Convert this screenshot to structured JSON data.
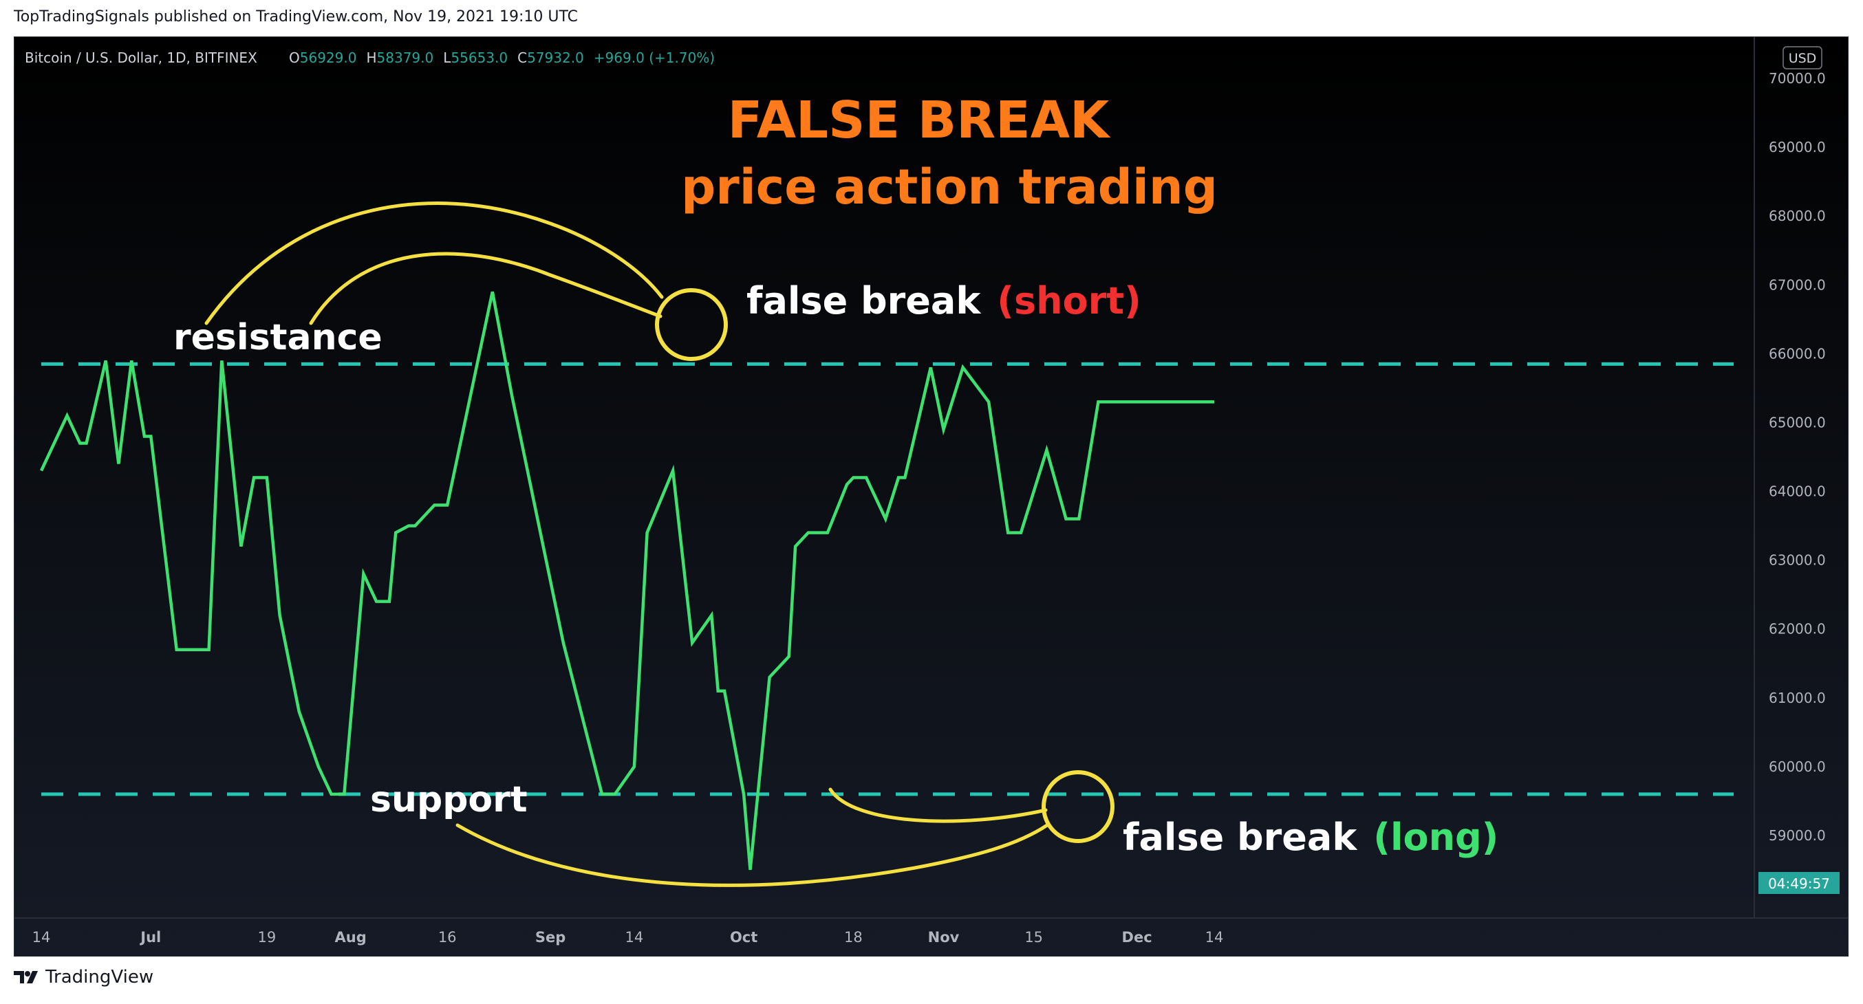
{
  "publisher_line": "TopTradingSignals published on TradingView.com, Nov 19, 2021 19:10 UTC",
  "footer": {
    "brand": "TradingView",
    "logo_icon": "tradingview-logo-icon"
  },
  "legend": {
    "symbol": "Bitcoin / U.S. Dollar, 1D, BITFINEX",
    "open_label": "O",
    "open": "56929.0",
    "high_label": "H",
    "high": "58379.0",
    "low_label": "L",
    "low": "55653.0",
    "close_label": "C",
    "close": "57932.0",
    "change": "+969.0 (+1.70%)"
  },
  "currency_badge": "USD",
  "countdown": "04:49:57",
  "annotations": {
    "title_line1": "FALSE BREAK",
    "title_line2": "price action trading",
    "resistance": "resistance",
    "support": "support",
    "false_break_short": "false break",
    "short_tag": "(short)",
    "false_break_long": "false break",
    "long_tag": "(long)"
  },
  "colors": {
    "line": "#3ee070",
    "levels": "#26c6b4",
    "title": "#ff7b1a",
    "short": "#f23030",
    "long": "#3ee070",
    "highlight": "#f5e042",
    "background": "#0b0e14"
  },
  "chart_data": {
    "type": "line",
    "x": [
      "Jun 14",
      "Jun 18",
      "Jun 20",
      "Jun 21",
      "Jun 24",
      "Jun 26",
      "Jun 28",
      "Jun 30",
      "Jul 1",
      "Jul 5",
      "Jul 8",
      "Jul 10",
      "Jul 12",
      "Jul 15",
      "Jul 17",
      "Jul 19",
      "Jul 21",
      "Jul 24",
      "Jul 27",
      "Jul 29",
      "Jul 31",
      "Aug 3",
      "Aug 5",
      "Aug 7",
      "Aug 8",
      "Aug 10",
      "Aug 11",
      "Aug 13",
      "Aug 14",
      "Aug 16",
      "Aug 23",
      "Aug 26",
      "Aug 30",
      "Sep 3",
      "Sep 9",
      "Sep 11",
      "Sep 14",
      "Sep 16",
      "Sep 20",
      "Sep 23",
      "Sep 26",
      "Sep 27",
      "Sep 28",
      "Oct 1",
      "Oct 2",
      "Oct 5",
      "Oct 8",
      "Oct 9",
      "Oct 11",
      "Oct 14",
      "Oct 17",
      "Oct 18",
      "Oct 20",
      "Oct 23",
      "Oct 25",
      "Oct 26",
      "Oct 30",
      "Nov 1",
      "Nov 4",
      "Nov 8",
      "Nov 11",
      "Nov 13",
      "Nov 17",
      "Nov 20",
      "Nov 22",
      "Nov 25",
      "Nov 30",
      "Dec 5",
      "Dec 13"
    ],
    "values": [
      64300,
      65100,
      64700,
      64700,
      65900,
      64400,
      65900,
      64800,
      64800,
      61700,
      61700,
      61700,
      65900,
      63200,
      64200,
      64200,
      62200,
      60800,
      60000,
      59600,
      59600,
      62800,
      62400,
      62400,
      63400,
      63500,
      63500,
      63700,
      63800,
      63800,
      66900,
      65400,
      63600,
      61800,
      59600,
      59600,
      60000,
      63400,
      64300,
      61800,
      62200,
      61100,
      61100,
      59600,
      58500,
      61300,
      61600,
      63200,
      63400,
      63400,
      64100,
      64200,
      64200,
      63600,
      64200,
      64200,
      65800,
      64900,
      65800,
      65300,
      63400,
      63400,
      64600,
      63600,
      63600,
      65300,
      65300,
      65300,
      65300
    ],
    "xlabel": "",
    "ylabel": "",
    "ylim": [
      57800,
      70600
    ],
    "y_ticks": [
      "70000.0",
      "69000.0",
      "68000.0",
      "67000.0",
      "66000.0",
      "65000.0",
      "64000.0",
      "63000.0",
      "62000.0",
      "61000.0",
      "60000.0",
      "59000.0"
    ],
    "x_ticks": [
      "14",
      "Jul",
      "19",
      "Aug",
      "16",
      "Sep",
      "14",
      "Oct",
      "18",
      "Nov",
      "15",
      "Dec",
      "14"
    ],
    "levels": [
      {
        "name": "resistance",
        "value": 65850
      },
      {
        "name": "support",
        "value": 59600
      }
    ],
    "grid": false,
    "legend": "top-left"
  }
}
